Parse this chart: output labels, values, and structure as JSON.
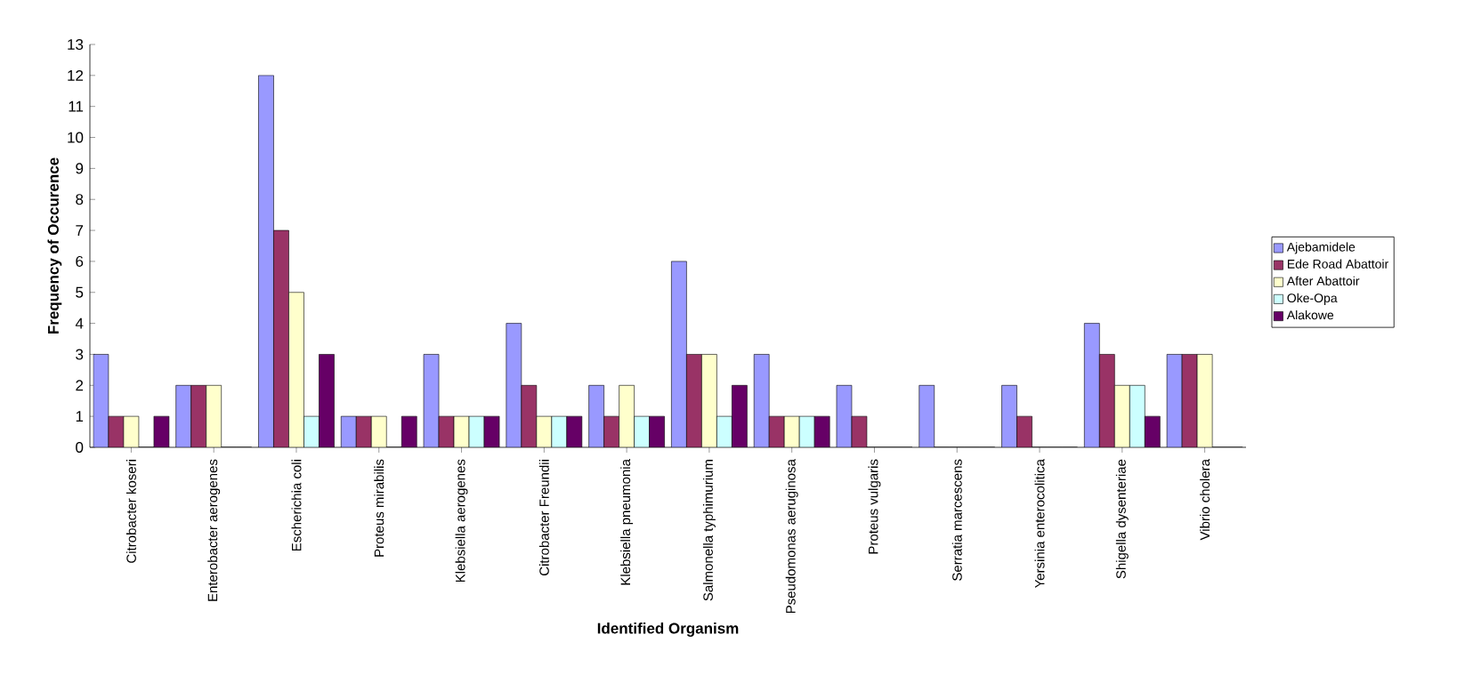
{
  "chart_data": {
    "type": "bar",
    "xlabel": "Identified Organism",
    "ylabel": "Frequency of Occurence",
    "categories": [
      "Citrobacter koseri",
      "Enterobacter aerogenes",
      "Escherichia coli",
      "Proteus mirabilis",
      "Klebsiella aerogenes",
      "Citrobacter Freundii",
      "Klebsiella pneumonia",
      "Salmonella typhimurium",
      "Pseudomonas aeruginosa",
      "Proteus vulgaris",
      "Serratia marcescens",
      "Yersinia enterocolitica",
      "Shigella dysenteriae",
      "Vibrio cholera"
    ],
    "series": [
      {
        "name": "Ajebamidele",
        "color": "#9999ff",
        "values": [
          3,
          2,
          12,
          1,
          3,
          4,
          2,
          6,
          3,
          2,
          2,
          2,
          4,
          3
        ]
      },
      {
        "name": "Ede Road Abattoir",
        "color": "#993366",
        "values": [
          1,
          2,
          7,
          1,
          1,
          2,
          1,
          3,
          1,
          1,
          0,
          1,
          3,
          3
        ]
      },
      {
        "name": "After Abattoir",
        "color": "#ffffcc",
        "values": [
          1,
          2,
          5,
          1,
          1,
          1,
          2,
          3,
          1,
          0,
          0,
          0,
          2,
          3
        ]
      },
      {
        "name": "Oke-Opa",
        "color": "#ccffff",
        "values": [
          0,
          0,
          1,
          0,
          1,
          1,
          1,
          1,
          1,
          0,
          0,
          0,
          2,
          0
        ]
      },
      {
        "name": "Alakowe",
        "color": "#660066",
        "values": [
          1,
          0,
          3,
          1,
          1,
          1,
          1,
          2,
          1,
          0,
          0,
          0,
          1,
          0
        ]
      }
    ],
    "ylim": [
      0,
      13
    ],
    "yticks": [
      0,
      1,
      2,
      3,
      4,
      5,
      6,
      7,
      8,
      9,
      10,
      11,
      12,
      13
    ],
    "legend": "right"
  }
}
